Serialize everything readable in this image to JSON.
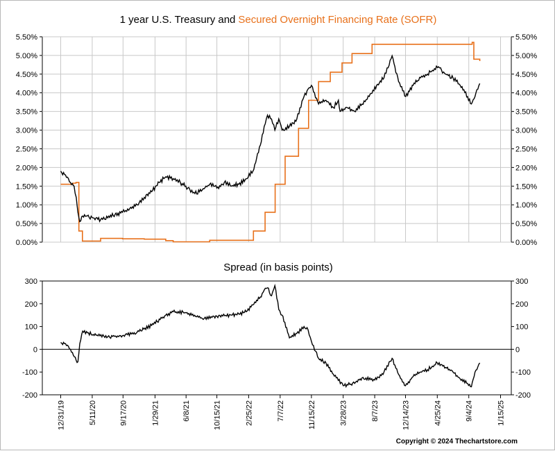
{
  "chart_data": [
    {
      "type": "line",
      "title": "1 year U.S. Treasury and",
      "title_highlight": "Secured Overnight Financing Rate (SOFR)",
      "title_highlight_color": "#e8701a",
      "y_tick_labels": [
        "0.00%",
        "0.50%",
        "1.00%",
        "1.50%",
        "2.00%",
        "2.50%",
        "3.00%",
        "3.50%",
        "4.00%",
        "4.50%",
        "5.00%",
        "5.50%"
      ],
      "ylim": [
        0,
        5.5
      ],
      "xlim": [
        "2019-10-15",
        "2025-03-01"
      ],
      "grid": true,
      "series": [
        {
          "name": "1 year U.S. Treasury",
          "color": "#000000",
          "x": [
            "2019-12-31",
            "2020-01-20",
            "2020-02-10",
            "2020-02-25",
            "2020-03-05",
            "2020-03-12",
            "2020-03-20",
            "2020-04-01",
            "2020-04-20",
            "2020-05-15",
            "2020-06-15",
            "2020-07-15",
            "2020-08-15",
            "2020-09-15",
            "2020-10-15",
            "2020-11-15",
            "2020-12-15",
            "2021-01-15",
            "2021-02-15",
            "2021-03-15",
            "2021-04-15",
            "2021-05-15",
            "2021-06-15",
            "2021-07-15",
            "2021-08-15",
            "2021-09-15",
            "2021-10-15",
            "2021-11-15",
            "2021-12-15",
            "2022-01-15",
            "2022-02-15",
            "2022-03-15",
            "2022-04-15",
            "2022-05-01",
            "2022-05-15",
            "2022-06-01",
            "2022-06-15",
            "2022-07-01",
            "2022-07-15",
            "2022-08-15",
            "2022-09-15",
            "2022-10-15",
            "2022-11-01",
            "2022-11-15",
            "2022-12-15",
            "2023-01-15",
            "2023-02-15",
            "2023-03-08",
            "2023-03-15",
            "2023-04-15",
            "2023-05-15",
            "2023-06-15",
            "2023-07-15",
            "2023-08-15",
            "2023-09-15",
            "2023-10-19",
            "2023-11-15",
            "2023-12-15",
            "2024-01-15",
            "2024-02-15",
            "2024-03-15",
            "2024-04-30",
            "2024-05-30",
            "2024-06-30",
            "2024-07-30",
            "2024-08-30",
            "2024-09-15",
            "2024-09-30",
            "2024-10-20"
          ],
          "values": [
            1.9,
            1.8,
            1.6,
            1.5,
            1.2,
            0.8,
            0.55,
            0.7,
            0.7,
            0.65,
            0.6,
            0.65,
            0.75,
            0.8,
            0.9,
            1.0,
            1.2,
            1.35,
            1.6,
            1.75,
            1.7,
            1.6,
            1.45,
            1.3,
            1.4,
            1.55,
            1.45,
            1.6,
            1.5,
            1.55,
            1.7,
            1.9,
            2.6,
            3.1,
            3.4,
            3.3,
            3.0,
            3.3,
            3.0,
            3.1,
            3.3,
            3.9,
            4.1,
            4.2,
            3.7,
            3.8,
            3.6,
            3.8,
            3.5,
            3.6,
            3.5,
            3.7,
            3.9,
            4.2,
            4.4,
            4.99,
            4.3,
            3.9,
            4.2,
            4.4,
            4.5,
            4.7,
            4.5,
            4.4,
            4.2,
            3.9,
            3.7,
            3.9,
            4.25
          ]
        },
        {
          "name": "Secured Overnight Financing Rate (SOFR)",
          "color": "#e8701a",
          "x": [
            "2019-12-31",
            "2020-02-20",
            "2020-03-04",
            "2020-03-16",
            "2020-03-31",
            "2020-06-15",
            "2020-09-15",
            "2020-12-15",
            "2021-03-15",
            "2021-04-15",
            "2021-09-15",
            "2022-03-17",
            "2022-05-05",
            "2022-06-16",
            "2022-07-28",
            "2022-09-22",
            "2022-11-03",
            "2022-12-15",
            "2023-02-02",
            "2023-03-23",
            "2023-05-04",
            "2023-07-27",
            "2024-09-18",
            "2024-09-25",
            "2024-10-20"
          ],
          "values": [
            1.55,
            1.58,
            1.6,
            0.3,
            0.03,
            0.1,
            0.09,
            0.08,
            0.04,
            0.01,
            0.05,
            0.3,
            0.8,
            1.55,
            2.3,
            3.05,
            3.8,
            4.3,
            4.55,
            4.8,
            5.05,
            5.3,
            5.35,
            4.9,
            4.85
          ]
        }
      ]
    },
    {
      "type": "line",
      "title": "Spread (in basis points)",
      "y_tick_labels": [
        "-200",
        "-100",
        "0",
        "100",
        "200",
        "300"
      ],
      "ylim": [
        -200,
        300
      ],
      "xlim": [
        "2019-10-15",
        "2025-03-01"
      ],
      "x_tick_labels": [
        "12/31/19",
        "5/11/20",
        "9/17/20",
        "1/29/21",
        "6/8/21",
        "10/15/21",
        "2/25/22",
        "7/7/22",
        "11/15/22",
        "3/28/23",
        "8/7/23",
        "12/14/23",
        "4/25/24",
        "9/4/24",
        "1/15/25"
      ],
      "x_tick_dates": [
        "2019-12-31",
        "2020-05-11",
        "2020-09-17",
        "2021-01-29",
        "2021-06-08",
        "2021-10-15",
        "2022-02-25",
        "2022-07-07",
        "2022-11-15",
        "2023-03-28",
        "2023-08-07",
        "2023-12-14",
        "2024-04-25",
        "2024-09-04",
        "2025-01-15"
      ],
      "grid": false,
      "series": [
        {
          "name": "Spread",
          "color": "#000000",
          "x": [
            "2019-12-31",
            "2020-01-20",
            "2020-02-10",
            "2020-03-05",
            "2020-03-12",
            "2020-03-20",
            "2020-04-01",
            "2020-05-15",
            "2020-07-15",
            "2020-09-15",
            "2020-11-15",
            "2021-01-15",
            "2021-03-15",
            "2021-04-15",
            "2021-06-08",
            "2021-08-15",
            "2021-10-15",
            "2021-12-15",
            "2022-01-15",
            "2022-02-15",
            "2022-03-15",
            "2022-04-15",
            "2022-05-01",
            "2022-05-15",
            "2022-06-01",
            "2022-06-15",
            "2022-07-01",
            "2022-07-15",
            "2022-08-15",
            "2022-09-15",
            "2022-10-15",
            "2022-11-01",
            "2022-11-15",
            "2022-12-15",
            "2023-01-15",
            "2023-02-15",
            "2023-03-28",
            "2023-05-15",
            "2023-06-15",
            "2023-08-07",
            "2023-09-15",
            "2023-10-19",
            "2023-11-15",
            "2023-12-14",
            "2024-01-15",
            "2024-02-15",
            "2024-03-15",
            "2024-04-25",
            "2024-05-30",
            "2024-06-30",
            "2024-07-30",
            "2024-08-30",
            "2024-09-15",
            "2024-09-30",
            "2024-10-20"
          ],
          "values": [
            30,
            25,
            0,
            -50,
            -55,
            25,
            80,
            65,
            55,
            60,
            75,
            105,
            150,
            165,
            160,
            135,
            145,
            150,
            155,
            165,
            195,
            230,
            260,
            270,
            235,
            280,
            175,
            150,
            50,
            70,
            100,
            85,
            35,
            -40,
            -60,
            -110,
            -160,
            -150,
            -125,
            -135,
            -100,
            -40,
            -110,
            -160,
            -120,
            -100,
            -90,
            -60,
            -80,
            -100,
            -130,
            -150,
            -165,
            -100,
            -60
          ]
        }
      ]
    }
  ],
  "copyright": "Copyright © 2024 Thechartstore.com"
}
